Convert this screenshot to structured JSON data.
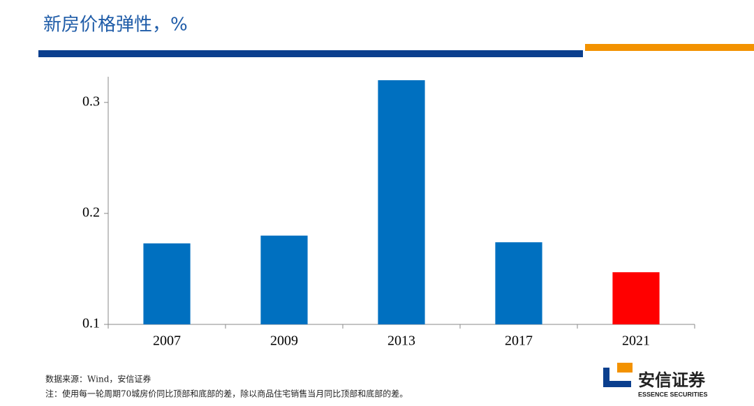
{
  "chart_data": {
    "type": "bar",
    "title": "新房价格弹性，%",
    "categories": [
      "2007",
      "2009",
      "2013",
      "2017",
      "2021"
    ],
    "values": [
      0.173,
      0.18,
      0.32,
      0.174,
      0.147
    ],
    "colors": [
      "#0070c0",
      "#0070c0",
      "#0070c0",
      "#0070c0",
      "#ff0000"
    ],
    "ylim": [
      0.1,
      0.32
    ],
    "yticks": [
      0.1,
      0.2,
      0.3
    ],
    "grid": false,
    "source": "数据来源：Wind，安信证券",
    "note": "注：使用每一轮周期70城房价同比顶部和底部的差，除以商品住宅销售当月同比顶部和底部的差。",
    "logo": {
      "name": "安信证券",
      "english": "ESSENCE SECURITIES"
    }
  }
}
